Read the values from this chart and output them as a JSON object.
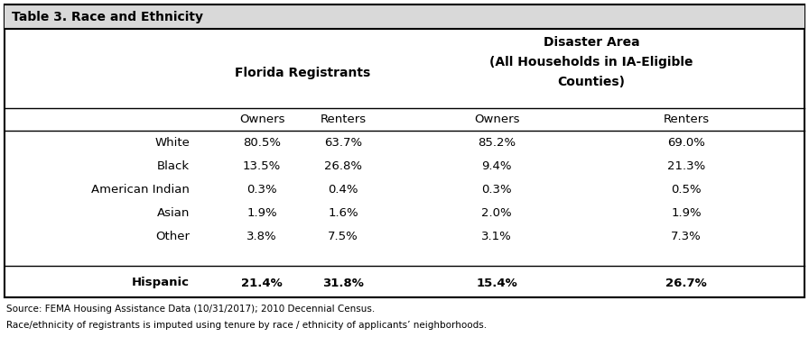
{
  "title": "Table 3. Race and Ethnicity",
  "col_group1_label": "Florida Registrants",
  "col_group2_line1": "Disaster Area",
  "col_group2_line2": "(All Households in IA-Eligible",
  "col_group2_line3": "Counties)",
  "col_headers": [
    "Owners",
    "Renters",
    "Owners",
    "Renters"
  ],
  "row_labels": [
    "White",
    "Black",
    "American Indian",
    "Asian",
    "Other",
    "",
    "Hispanic"
  ],
  "data": [
    [
      "80.5%",
      "63.7%",
      "85.2%",
      "69.0%"
    ],
    [
      "13.5%",
      "26.8%",
      "9.4%",
      "21.3%"
    ],
    [
      "0.3%",
      "0.4%",
      "0.3%",
      "0.5%"
    ],
    [
      "1.9%",
      "1.6%",
      "2.0%",
      "1.9%"
    ],
    [
      "3.8%",
      "7.5%",
      "3.1%",
      "7.3%"
    ],
    [
      "",
      "",
      "",
      ""
    ],
    [
      "21.4%",
      "31.8%",
      "15.4%",
      "26.7%"
    ]
  ],
  "footnotes": [
    "Source: FEMA Housing Assistance Data (10/31/2017); 2010 Decennial Census.",
    "Race/ethnicity of registrants is imputed using tenure by race / ethnicity of applicants’ neighborhoods."
  ],
  "background_color": "#ffffff",
  "border_color": "#000000",
  "text_color": "#000000",
  "title_bg_color": "#d9d9d9",
  "figsize": [
    8.96,
    3.84
  ],
  "dpi": 100
}
